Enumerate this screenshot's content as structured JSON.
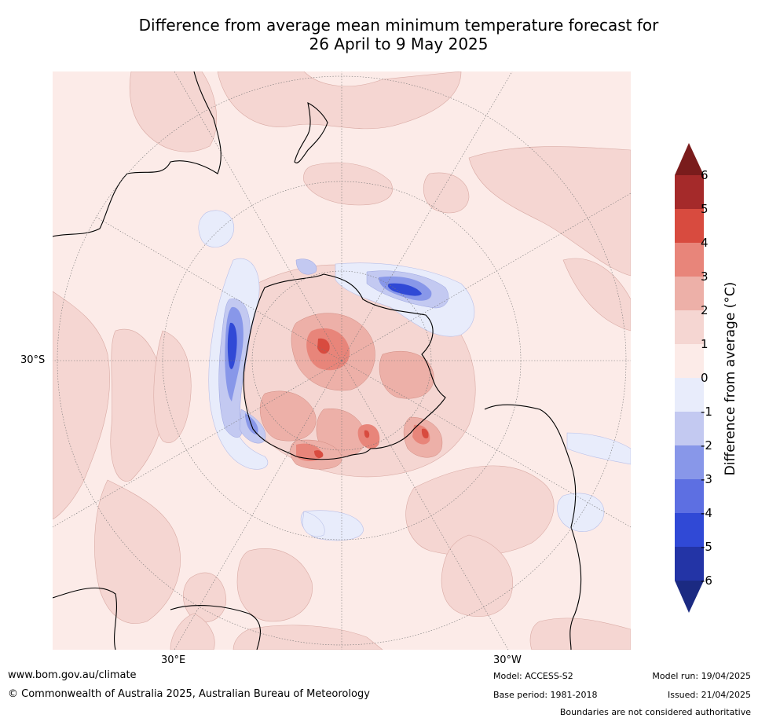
{
  "title_line1": "Difference from average mean minimum temperature forecast for",
  "title_line2": "26 April to 9 May 2025",
  "map_labels": {
    "lat_30s": "30°S",
    "lon_30e": "30°E",
    "lon_30w": "30°W"
  },
  "colorbar": {
    "label": "Difference from average (°C)",
    "ticks": [
      "6",
      "5",
      "4",
      "3",
      "2",
      "1",
      "0",
      "-1",
      "-2",
      "-3",
      "-4",
      "-5",
      "-6"
    ],
    "colors": {
      "over": "#7a1c1c",
      "6": "#a52a2a",
      "5": "#d84b3f",
      "4": "#e8857a",
      "3": "#edb0a8",
      "2": "#f5d6d2",
      "1": "#fcebe8",
      "0": "#e8ecfb",
      "-1": "#c3c9f1",
      "-2": "#8897e9",
      "-3": "#5d6fe2",
      "-4": "#3049d6",
      "-5": "#2334a6",
      "under": "#1b2a82"
    }
  },
  "footer": {
    "website": "www.bom.gov.au/climate",
    "copyright": "© Commonwealth of Australia 2025, Australian Bureau of Meteorology",
    "model": "Model: ACCESS-S2",
    "base_period": "Base period: 1981-2018",
    "model_run": "Model run: 19/04/2025",
    "issued": "Issued: 21/04/2025",
    "disclaimer": "Boundaries are not considered authoritative"
  }
}
